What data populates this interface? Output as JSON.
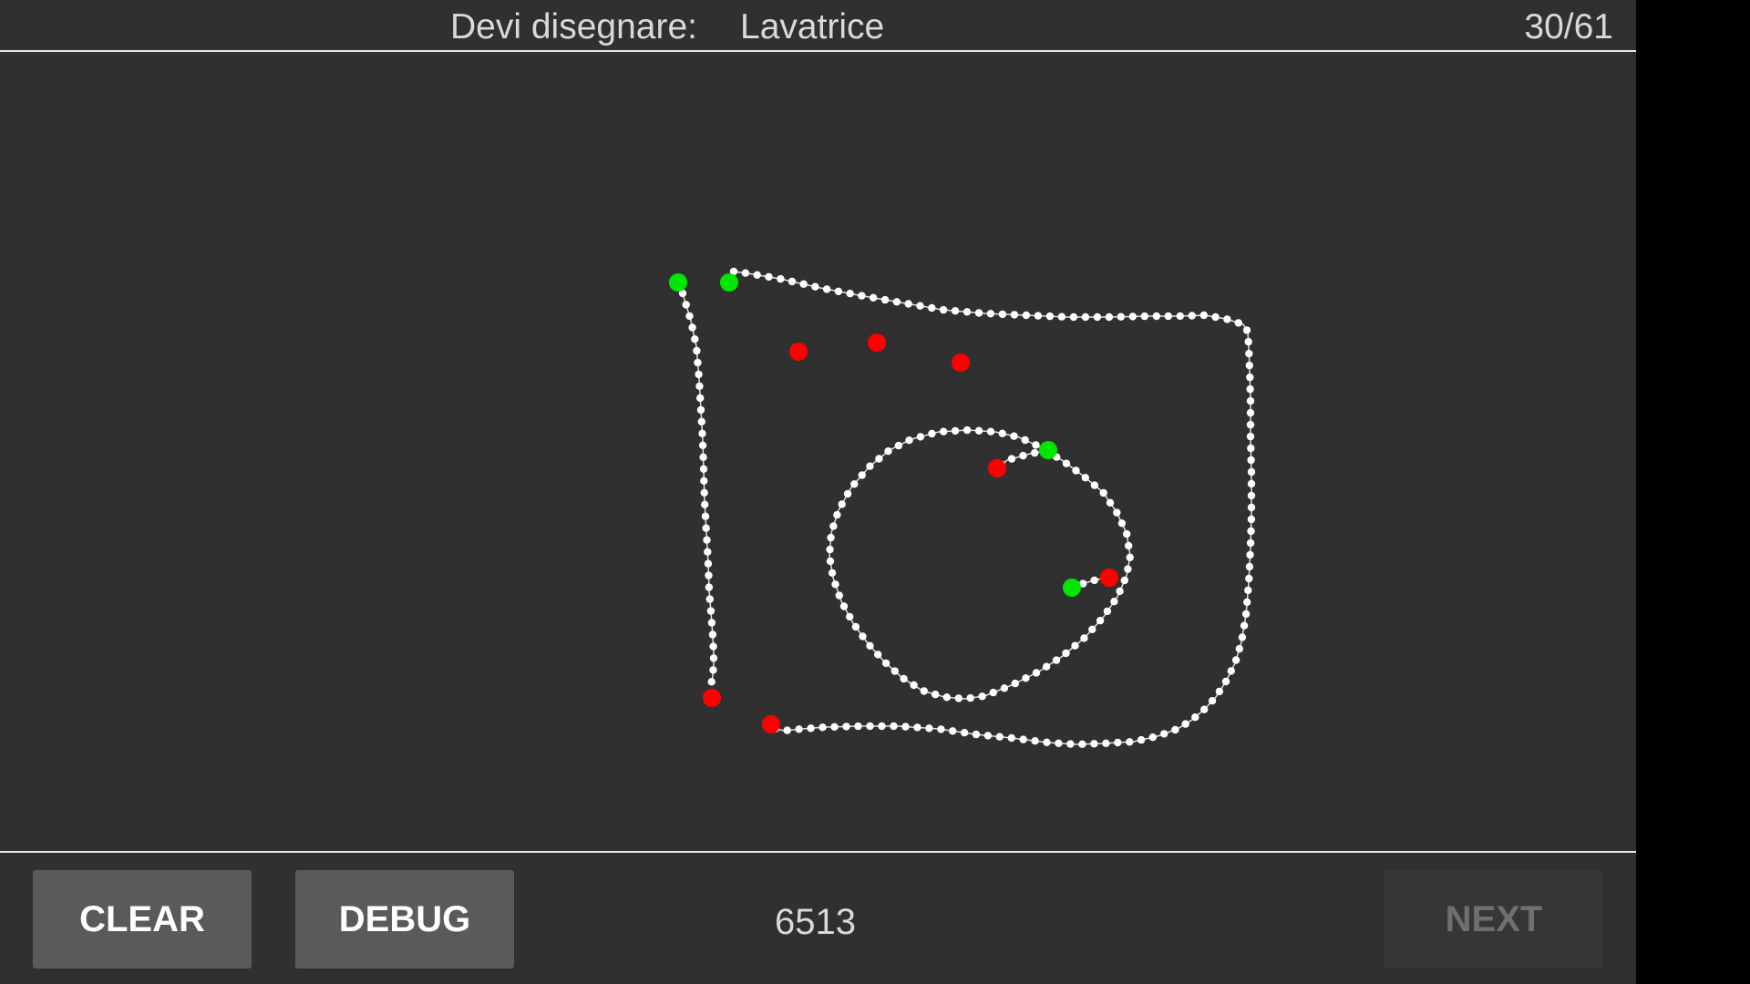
{
  "header": {
    "prompt_label": "Devi disegnare:",
    "target_word": "Lavatrice",
    "progress": "30/61"
  },
  "footer": {
    "clear_label": "CLEAR",
    "debug_label": "DEBUG",
    "score": "6513",
    "next_label": "NEXT"
  },
  "colors": {
    "background": "#303030",
    "stroke": "#ffffff",
    "start_marker": "#00e600",
    "end_marker": "#ff0000"
  }
}
